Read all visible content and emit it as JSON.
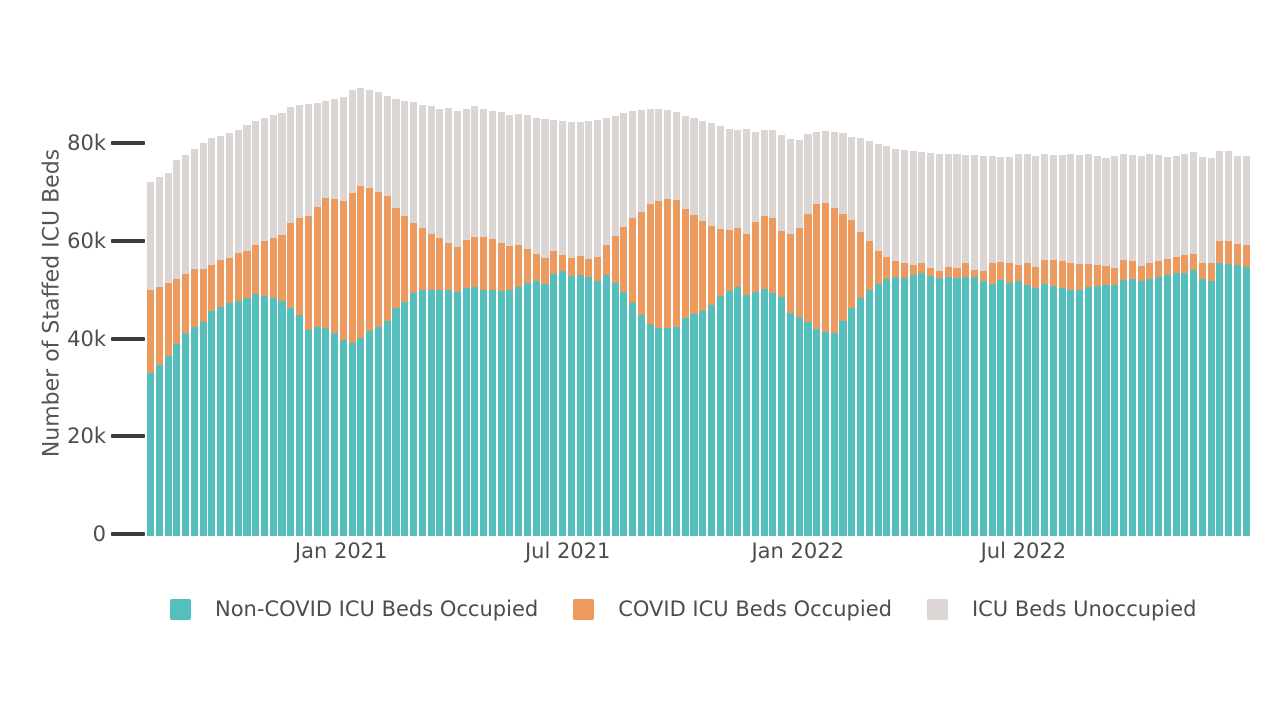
{
  "figure": {
    "kind": "stacked-weekly-bar-chart",
    "background_color": "#ffffff",
    "axis_tick_color": "#3b3b3b",
    "axis_label_color": "#4d4d4d",
    "y_title_color": "#555555"
  },
  "chart_data": {
    "type": "bar",
    "stacked": true,
    "title": "",
    "xlabel": "",
    "ylabel": "Number of Staffed ICU Beds",
    "unit": "thousands of beds",
    "ylim": [
      0,
      92
    ],
    "grid": false,
    "y_ticks": {
      "values": [
        0,
        20,
        40,
        60,
        80
      ],
      "labels": [
        "0",
        "20k",
        "40k",
        "60k",
        "80k"
      ]
    },
    "x_axis": {
      "kind": "weekly-time-axis",
      "start_date": "2020-08-02",
      "interval_days": 7,
      "n_bars": 126,
      "ticks": [
        {
          "label": "Jan 2021",
          "week_index": 21.7
        },
        {
          "label": "Jul 2021",
          "week_index": 47.6
        },
        {
          "label": "Jan 2022",
          "week_index": 73.9
        },
        {
          "label": "Jul 2022",
          "week_index": 99.7
        }
      ]
    },
    "legend": {
      "position": "bottom-left"
    },
    "series": [
      {
        "name": "Non-COVID ICU Beds Occupied",
        "color": "#55bfbd",
        "values": [
          33.2,
          34.9,
          36.7,
          39.1,
          41.3,
          42.5,
          43.5,
          45.9,
          46.6,
          47.4,
          47.9,
          48.5,
          49.3,
          48.8,
          48.4,
          47.8,
          46.5,
          45.1,
          42.0,
          42.5,
          42.3,
          41.4,
          39.9,
          39.4,
          40.3,
          41.8,
          42.6,
          43.9,
          46.5,
          47.7,
          49.6,
          50.1,
          50.2,
          50.1,
          50.2,
          49.7,
          50.5,
          50.7,
          50.1,
          50.2,
          50.0,
          50.1,
          50.7,
          51.6,
          51.9,
          51.4,
          53.3,
          53.9,
          53.0,
          53.2,
          52.8,
          51.9,
          53.2,
          51.6,
          49.7,
          47.5,
          45.1,
          43.2,
          42.3,
          42.4,
          42.5,
          44.5,
          45.2,
          45.9,
          47.0,
          48.8,
          50.0,
          50.7,
          49.1,
          49.8,
          50.3,
          49.6,
          48.6,
          45.5,
          44.6,
          43.5,
          42.1,
          41.6,
          41.4,
          43.7,
          46.5,
          48.5,
          50.1,
          51.4,
          52.3,
          52.8,
          52.5,
          53.2,
          53.5,
          53.0,
          52.5,
          52.8,
          52.5,
          52.8,
          52.7,
          51.9,
          51.4,
          52.1,
          51.6,
          51.9,
          51.2,
          50.5,
          51.4,
          50.9,
          50.5,
          50.2,
          50.2,
          50.7,
          50.9,
          51.2,
          51.2,
          52.1,
          52.3,
          51.9,
          52.3,
          52.8,
          53.2,
          53.5,
          53.5,
          54.2,
          52.3,
          52.0,
          55.7,
          55.5,
          55.2,
          54.9
        ]
      },
      {
        "name": "COVID ICU Beds Occupied",
        "color": "#ec9a5e",
        "values": [
          17.0,
          15.9,
          14.8,
          13.3,
          12.1,
          11.9,
          10.9,
          9.4,
          9.6,
          9.3,
          9.7,
          9.5,
          9.9,
          11.3,
          12.4,
          13.6,
          17.2,
          19.7,
          23.1,
          24.6,
          26.6,
          27.3,
          28.4,
          30.4,
          30.9,
          29.1,
          27.4,
          25.4,
          20.3,
          17.4,
          14.1,
          12.6,
          11.4,
          10.7,
          9.4,
          9.2,
          9.8,
          10.3,
          10.8,
          10.4,
          9.7,
          8.9,
          8.5,
          6.9,
          5.6,
          5.3,
          4.8,
          3.3,
          3.7,
          3.8,
          3.7,
          4.9,
          6.0,
          9.6,
          13.3,
          17.3,
          20.9,
          24.5,
          25.9,
          26.3,
          26.0,
          22.1,
          20.2,
          18.3,
          16.2,
          13.7,
          12.3,
          12.0,
          12.5,
          14.1,
          14.8,
          15.2,
          13.5,
          16.0,
          18.2,
          22.0,
          25.5,
          26.2,
          25.5,
          21.8,
          17.9,
          13.4,
          9.9,
          6.6,
          4.6,
          3.2,
          3.1,
          2.1,
          2.1,
          1.6,
          1.4,
          2.1,
          2.1,
          2.8,
          1.5,
          2.0,
          4.2,
          3.7,
          4.0,
          3.4,
          4.4,
          4.4,
          4.9,
          5.4,
          5.5,
          5.4,
          5.2,
          4.7,
          4.4,
          3.9,
          3.4,
          4.2,
          3.7,
          3.2,
          3.3,
          3.2,
          3.3,
          3.4,
          3.8,
          3.2,
          3.4,
          3.7,
          4.5,
          4.5,
          4.2,
          4.3
        ]
      },
      {
        "name": "ICU Beds Unoccupied",
        "color": "#dbd6d3",
        "values": [
          21.9,
          22.3,
          22.4,
          24.1,
          24.2,
          24.5,
          25.7,
          25.8,
          25.2,
          25.4,
          25.2,
          25.7,
          25.4,
          25.1,
          24.9,
          24.8,
          23.6,
          23.0,
          23.0,
          21.2,
          19.7,
          20.4,
          21.2,
          21.0,
          20.1,
          20.0,
          20.4,
          20.3,
          22.3,
          23.5,
          24.7,
          25.2,
          26.0,
          26.2,
          27.5,
          27.6,
          26.7,
          26.6,
          26.0,
          26.0,
          26.7,
          26.8,
          26.8,
          27.2,
          27.7,
          28.2,
          26.6,
          27.3,
          27.6,
          27.3,
          28.0,
          28.0,
          25.9,
          24.4,
          23.1,
          21.7,
          20.7,
          19.3,
          18.7,
          18.0,
          17.9,
          18.9,
          19.8,
          20.3,
          20.9,
          21.1,
          20.6,
          20.0,
          21.4,
          18.4,
          17.7,
          17.9,
          19.6,
          19.3,
          17.8,
          16.3,
          14.7,
          14.7,
          15.4,
          16.6,
          16.9,
          19.1,
          20.5,
          21.9,
          22.5,
          22.9,
          23.0,
          23.1,
          22.6,
          23.4,
          24.0,
          22.9,
          23.2,
          22.0,
          23.4,
          23.5,
          21.8,
          21.5,
          21.7,
          22.5,
          22.3,
          22.5,
          21.5,
          21.3,
          21.6,
          22.2,
          22.2,
          22.4,
          22.1,
          22.0,
          22.8,
          21.5,
          21.6,
          22.3,
          22.2,
          21.6,
          20.8,
          20.5,
          20.5,
          20.9,
          21.5,
          21.4,
          18.3,
          18.4,
          18.1,
          18.2
        ]
      }
    ]
  }
}
